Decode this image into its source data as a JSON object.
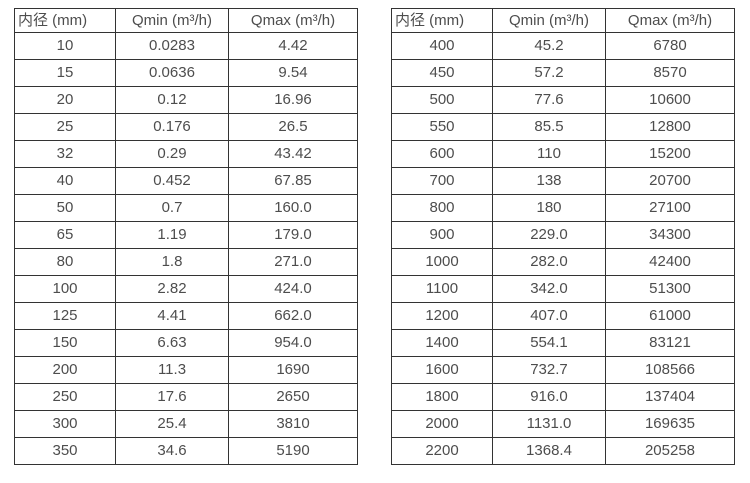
{
  "page": {
    "background_color": "#ffffff",
    "text_color": "#4d4d4d",
    "border_color": "#333333"
  },
  "tables": [
    {
      "name": "flow-table-small-diameters",
      "headers": [
        "内径 (mm)",
        "Qmin (m³/h)",
        "Qmax (m³/h)"
      ],
      "rows": [
        [
          "10",
          "0.0283",
          "4.42"
        ],
        [
          "15",
          "0.0636",
          "9.54"
        ],
        [
          "20",
          "0.12",
          "16.96"
        ],
        [
          "25",
          "0.176",
          "26.5"
        ],
        [
          "32",
          "0.29",
          "43.42"
        ],
        [
          "40",
          "0.452",
          "67.85"
        ],
        [
          "50",
          "0.7",
          "160.0"
        ],
        [
          "65",
          "1.19",
          "179.0"
        ],
        [
          "80",
          "1.8",
          "271.0"
        ],
        [
          "100",
          "2.82",
          "424.0"
        ],
        [
          "125",
          "4.41",
          "662.0"
        ],
        [
          "150",
          "6.63",
          "954.0"
        ],
        [
          "200",
          "11.3",
          "1690"
        ],
        [
          "250",
          "17.6",
          "2650"
        ],
        [
          "300",
          "25.4",
          "3810"
        ],
        [
          "350",
          "34.6",
          "5190"
        ]
      ]
    },
    {
      "name": "flow-table-large-diameters",
      "headers": [
        "内径 (mm)",
        "Qmin (m³/h)",
        "Qmax (m³/h)"
      ],
      "rows": [
        [
          "400",
          "45.2",
          "6780"
        ],
        [
          "450",
          "57.2",
          "8570"
        ],
        [
          "500",
          "77.6",
          "10600"
        ],
        [
          "550",
          "85.5",
          "12800"
        ],
        [
          "600",
          "110",
          "15200"
        ],
        [
          "700",
          "138",
          "20700"
        ],
        [
          "800",
          "180",
          "27100"
        ],
        [
          "900",
          "229.0",
          "34300"
        ],
        [
          "1000",
          "282.0",
          "42400"
        ],
        [
          "1100",
          "342.0",
          "51300"
        ],
        [
          "1200",
          "407.0",
          "61000"
        ],
        [
          "1400",
          "554.1",
          "83121"
        ],
        [
          "1600",
          "732.7",
          "108566"
        ],
        [
          "1800",
          "916.0",
          "137404"
        ],
        [
          "2000",
          "1131.0",
          "169635"
        ],
        [
          "2200",
          "1368.4",
          "205258"
        ]
      ]
    }
  ]
}
